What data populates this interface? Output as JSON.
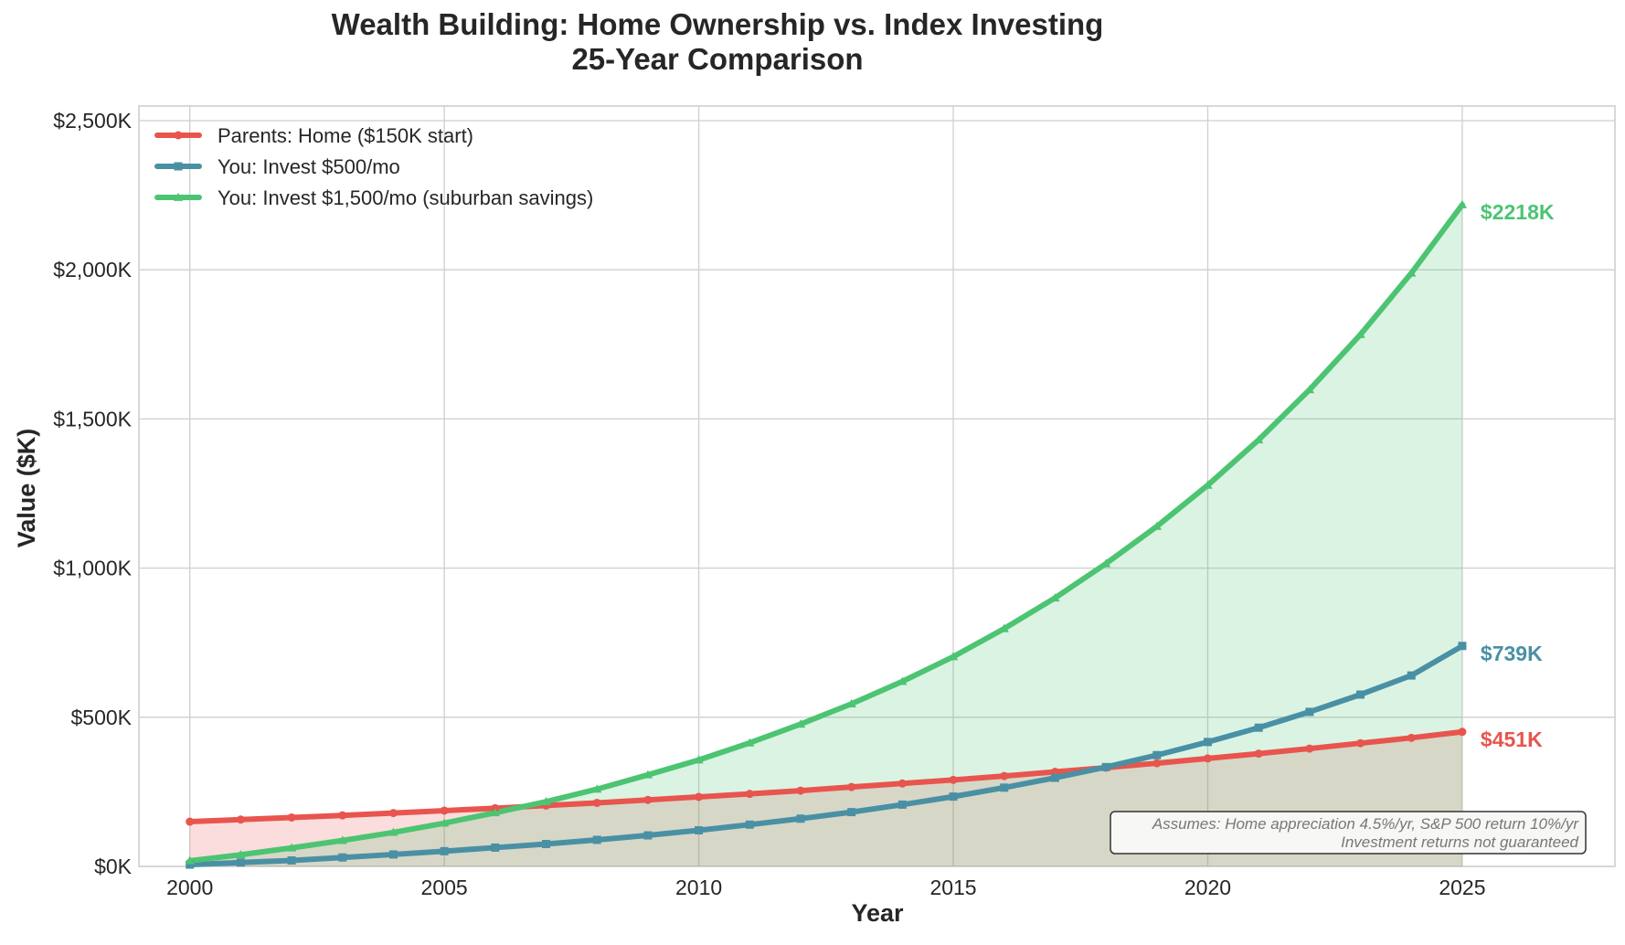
{
  "chart_data": {
    "type": "line",
    "title": "Wealth Building: Home Ownership vs. Index Investing",
    "subtitle": "25-Year Comparison",
    "xlabel": "Year",
    "ylabel": "Value ($K)",
    "x": [
      2000,
      2001,
      2002,
      2003,
      2004,
      2005,
      2006,
      2007,
      2008,
      2009,
      2010,
      2011,
      2012,
      2013,
      2014,
      2015,
      2016,
      2017,
      2018,
      2019,
      2020,
      2021,
      2022,
      2023,
      2024,
      2025
    ],
    "xlim": [
      1999,
      2028
    ],
    "ylim": [
      0,
      2500
    ],
    "xticks": [
      2000,
      2005,
      2010,
      2015,
      2020,
      2025
    ],
    "xtick_labels": [
      "2000",
      "2005",
      "2010",
      "2015",
      "2020",
      "2025"
    ],
    "yticks": [
      0,
      500,
      1000,
      1500,
      2000,
      2500
    ],
    "ytick_labels": [
      "$0K",
      "$500K",
      "$1,000K",
      "$1,500K",
      "$2,000K",
      "$2,500K"
    ],
    "grid": true,
    "legend_position": "top-left",
    "series": [
      {
        "name": "Parents: Home ($150K start)",
        "color": "#e8554e",
        "marker": "circle",
        "fill": true,
        "end_label": "$451K",
        "values": [
          150,
          157,
          164,
          171,
          179,
          187,
          195,
          204,
          213,
          223,
          233,
          243,
          254,
          266,
          278,
          290,
          303,
          317,
          331,
          346,
          362,
          378,
          395,
          413,
          431,
          451
        ]
      },
      {
        "name": "You: Invest $500/mo",
        "color": "#4a90a4",
        "marker": "square",
        "fill": false,
        "end_label": "$739K",
        "values": [
          6,
          13,
          20,
          30,
          40,
          51,
          63,
          75,
          89,
          104,
          121,
          140,
          160,
          182,
          207,
          234,
          264,
          297,
          333,
          373,
          417,
          465,
          518,
          576,
          640,
          739
        ]
      },
      {
        "name": "You: Invest $1,500/mo (suburban savings)",
        "color": "#4cc472",
        "marker": "triangle",
        "fill": true,
        "end_label": "$2218K",
        "values": [
          19,
          39,
          62,
          87,
          114,
          145,
          180,
          217,
          259,
          307,
          357,
          414,
          477,
          545,
          620,
          703,
          797,
          900,
          1015,
          1140,
          1278,
          1430,
          1598,
          1783,
          1989,
          2218
        ]
      }
    ],
    "annotation": {
      "line1": "Assumes: Home appreciation 4.5%/yr, S&P 500 return 10%/yr",
      "line2": "Investment returns not guaranteed"
    }
  }
}
